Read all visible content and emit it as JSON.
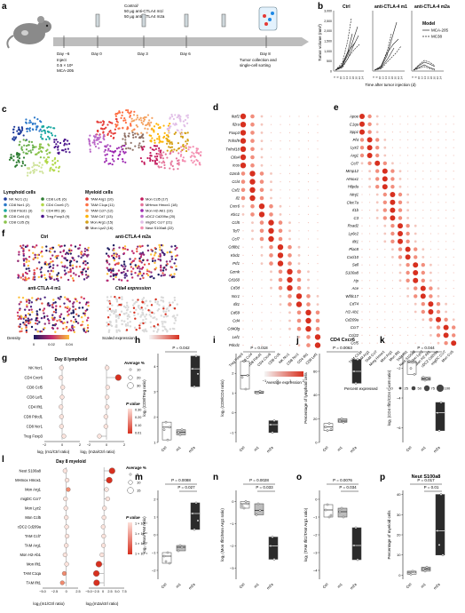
{
  "panels": {
    "a": {
      "letter": "a",
      "treatment_line1": "Control/",
      "treatment_line2": "50 µg anti-CTLA4 m1/",
      "treatment_line3": "50 µg anti-CTLA4 m2a",
      "days": [
        "Day −6",
        "Day 0",
        "Day 3",
        "Day 6",
        "Day 8"
      ],
      "inject_line1": "Inject",
      "inject_line2": "0.5 × 10⁶",
      "inject_line3": "MCA-205",
      "collect_line1": "Tumor collection and",
      "collect_line2": "single-cell sorting"
    },
    "b": {
      "letter": "b",
      "groups": [
        "Ctrl",
        "anti-CTLA-4 m1",
        "anti-CTLA-4 m2a"
      ],
      "ylabel": "Tumor volume (mm³)",
      "yticks": [
        "0",
        "500",
        "1,000",
        "1,500",
        "2,000",
        "2,500",
        "3,000"
      ],
      "xticks": [
        "6",
        "8",
        "10",
        "12",
        "14",
        "16",
        "18",
        "20",
        "22",
        "24"
      ],
      "xlabel": "Time after tumor injection (d)",
      "legend_title": "Model",
      "legend_items": [
        "MCA-205",
        "MC38"
      ]
    },
    "c": {
      "letter": "c",
      "lymphoid_title": "Lymphoid cells",
      "myeloid_title": "Myeloid cells",
      "lymphoid_col1": [
        "NK Ncr1 (1)",
        "CD8 Ncr1 (2)",
        "CD8 Pdcd1 (3)",
        "CD8 Ccl4 (4)",
        "CD8 Ccl5 (5)"
      ],
      "lymphoid_col2": [
        "CD8 Lef1 (6)",
        "CD4 Cxcr6 (7)",
        "CD4 Ifit1 (8)",
        "Treg Foxp3 (9)"
      ],
      "myeloid_col1": [
        "TAM Arg1 (10)",
        "TAM C1qa (11)",
        "TAM Ccl7 (12)",
        "TAM Cd7 (13)",
        "Mon Arg1 (15)",
        "Mon Lyz2 (16)"
      ],
      "myeloid_col2": [
        "Mon Ccl5 (17)",
        "MHmox Hmox1 (18)",
        "Mon H2-Ab1 (19)",
        "cDC2 Cd209a (20)",
        "migDC Ccr7 (21)",
        "Neut S100a8 (22)"
      ],
      "lymphoid_colors": [
        "#1f3b9c",
        "#2a78c9",
        "#18a7a0",
        "#6ab04c",
        "#8bc34a",
        "#2e7d32",
        "#b3d94a",
        "#cfe39a",
        "#4a148c"
      ],
      "myeloid_colors": [
        "#e53935",
        "#ff7043",
        "#f4a261",
        "#ffb300",
        "#d4a017",
        "#8d6e63",
        "#c2185b",
        "#e57399",
        "#9c27b0",
        "#ba68c8",
        "#e1bee7",
        "#f48fb1"
      ]
    },
    "d": {
      "letter": "d",
      "genes": [
        "Ikzf2",
        "Il2ra",
        "Foxp3",
        "Tnfrsf9",
        "Tnfrsf18",
        "Ctla4",
        "Icos",
        "Gzmb",
        "Ccl4",
        "Csf2",
        "Il2",
        "Cxcr6",
        "Klrc1",
        "Ccl5",
        "Tcf7",
        "Ccl7",
        "Cd8b1",
        "Klrd1",
        "Prf1",
        "Gzmk",
        "Cd160",
        "Cd3d",
        "Ncr1",
        "Ifit1",
        "Cd69",
        "Cd4",
        "Cd40lg",
        "Lef1",
        "Pdcd1"
      ],
      "clusters": [
        "Treg Foxp3",
        "CD8 Ccl4",
        "CD8 Pdcd1",
        "CD4 Cxcr6",
        "CD8 Ccl5",
        "NK Ncr1",
        "CD8 Ncr1",
        "CD4 Ifit1",
        "CD8 Lef1"
      ],
      "legend_title": "Average expression",
      "legend_ticks": [
        "−1",
        "0",
        "1",
        "2"
      ]
    },
    "e": {
      "letter": "e",
      "genes": [
        "Apoe",
        "C1qa",
        "Spp1",
        "Pf4",
        "Lyz2",
        "Arg1",
        "Ccl7",
        "Mmp12",
        "Hmox1",
        "Hilpda",
        "Ninj1",
        "Clec7a",
        "Il1b",
        "C3",
        "Rsad2",
        "Ly6c2",
        "Ifit1",
        "Plac8",
        "Cxcl10",
        "Sell",
        "S100a8",
        "Hp",
        "Ace",
        "Wfdc17",
        "Cd74",
        "H2-Ab1",
        "Cd209a",
        "Ccr7",
        "Ccl22",
        "Ccl5"
      ],
      "clusters": [
        "TAM C1qa",
        "TAM Arg1",
        "TAM Ccl7",
        "Mreg Hmox1",
        "Mon Arg1",
        "Mon Ifit1",
        "TAM Ifit1",
        "Neut S100a8",
        "Mon Lyz2",
        "Mon H2-Ab1",
        "cDC2 Cd209a",
        "migDC Ccr7",
        "Mon Ccl5"
      ],
      "legend_title": "Percent expressed",
      "legend_ticks": [
        "0",
        "25",
        "50",
        "75",
        "100"
      ]
    },
    "f": {
      "letter": "f",
      "titles": [
        "Ctrl",
        "anti-CTLA-4 m2a",
        "anti-CTLA-4 m1",
        "Ctla4 expression"
      ],
      "density_label": "Density",
      "density_ticks": [
        "0",
        "0.02",
        "0.04"
      ],
      "scaled_label": "Scaled expression"
    },
    "g": {
      "letter": "g",
      "title": "Day 8 lymphoid",
      "rows": [
        "NK Ncr1",
        "CD4 Cxcr6",
        "CD8 Ccl5",
        "CD8 Lef1",
        "CD4 Ifit1",
        "CD8 Pdcd1",
        "CD8 Ncr1",
        "Treg Foxp3"
      ],
      "m1_values": [
        -0.1,
        -0.2,
        0.1,
        0.0,
        -0.2,
        -0.1,
        -0.1,
        0.3
      ],
      "m2a_values": [
        0.1,
        2.0,
        0.2,
        0.1,
        0.1,
        -0.1,
        -0.1,
        -1.2
      ],
      "xlabel_left": "log₂ (m1/Ctrl ratio)",
      "xlabel_right": "log₂ (m2a/Ctrl ratio)",
      "xticks_left": [
        "−2",
        "0",
        "2"
      ],
      "xticks_right": [
        "−2",
        "0",
        "2"
      ],
      "size_title": "Average %",
      "size_ticks": [
        "10",
        "20",
        "30"
      ],
      "p_title": "P value",
      "p_ticks": [
        "0.30",
        "0.20",
        "0.10",
        "0.01"
      ]
    },
    "h": {
      "letter": "h",
      "pval": "P = 0.042",
      "ylabel": "log₂ (CD8/Treg ratio)",
      "yticks": [
        "1",
        "2",
        "3",
        "4"
      ],
      "groups": [
        "Ctrl",
        "m1",
        "m2a"
      ],
      "values": [
        [
          1.5,
          1.8,
          1.1,
          1.6
        ],
        [
          1.4,
          1.3,
          1.5
        ],
        [
          3.9,
          3.2,
          4.4,
          3.7
        ]
      ]
    },
    "i": {
      "letter": "i",
      "pval": "P = 0.018",
      "ylabel": "log₂ (CD8/CD4 ratio)",
      "yticks": [
        "−1",
        "0",
        "1",
        "2"
      ],
      "groups": [
        "Ctrl",
        "m1",
        "m2a"
      ],
      "values": [
        [
          1.8,
          2.6,
          1.2,
          1.9
        ],
        [
          1.0,
          1.0,
          1.1
        ],
        [
          -0.6,
          -1.0,
          -0.4
        ]
      ]
    },
    "j": {
      "letter": "j",
      "title": "CD4 Cxcr6",
      "pval": "P = 0.0063",
      "ylabel": "Percentage of lymphoid cells",
      "yticks": [
        "0",
        "20",
        "40",
        "60"
      ],
      "groups": [
        "Ctrl",
        "m1",
        "m2a"
      ],
      "values": [
        [
          13,
          10,
          16,
          11
        ],
        [
          18,
          20,
          17
        ],
        [
          60,
          50,
          70
        ]
      ]
    },
    "k": {
      "letter": "k",
      "pval": "P = 0.044",
      "ylabel": "log₂ (CD4 Ifit1/CD4 Cxcr6 ratio)",
      "yticks": [
        "−6",
        "−4",
        "−2"
      ],
      "groups": [
        "Ctrl",
        "m1",
        "m2a"
      ],
      "values": [
        [
          -1.5,
          -2.0,
          -1.6,
          -2.4
        ],
        [
          -2.6,
          -2.8,
          -2.7
        ],
        [
          -5.0,
          -6.2,
          -4.3
        ]
      ]
    },
    "l": {
      "letter": "l",
      "title": "Day 8 myeloid",
      "rows": [
        "Neut S100a8",
        "MHmox Hmox1",
        "Mon Arg1",
        "migDC Ccr7",
        "Mon Lyz2",
        "Mon Ccl5",
        "cDC2 Cd209a",
        "TAM Ccl7",
        "TAM Arg1",
        "Mon H2-Ab1",
        "Mon Ifit1",
        "TAM C1qa",
        "TAM Ifit1"
      ],
      "m1_values": [
        -0.3,
        0.2,
        0.5,
        -0.2,
        -0.1,
        0.0,
        0.1,
        0.2,
        0.0,
        -0.3,
        0.1,
        -0.5,
        -1.0
      ],
      "m2a_values": [
        3.2,
        2.1,
        1.0,
        1.5,
        0.2,
        0.0,
        -0.3,
        -0.1,
        -0.2,
        -0.8,
        -2.0,
        -3.0,
        -2.9
      ],
      "xlabel_left": "log₂(m1/Ctrl ratio)",
      "xlabel_right": "log₂(m2a/ctrl ratio)",
      "xticks_left": [
        "−5.0",
        "−2.5",
        "0",
        "2.5"
      ],
      "xticks_right": [
        "−5.0",
        "−2.5",
        "0",
        "2.5",
        "5.0",
        "7.5"
      ],
      "size_title": "Average %",
      "size_ticks": [
        "5",
        "10",
        "15"
      ],
      "p_title": "P value",
      "p_ticks": [
        "1 × 10⁻¹",
        "1 × 10⁻²",
        "1 × 10⁻³",
        "1 × 10⁻⁴"
      ]
    },
    "m": {
      "letter": "m",
      "pval1": "P = 0.0088",
      "pval2": "P = 0.027",
      "ylabel": "log₂ (Mon/TAM ratio)",
      "yticks": [
        "−2",
        "−1",
        "0",
        "1",
        "2"
      ],
      "groups": [
        "Ctrl",
        "m1",
        "m2a"
      ],
      "values": [
        [
          -1.2,
          -1.5,
          -1.0,
          -1.6
        ],
        [
          -0.9,
          -0.6,
          -0.7
        ],
        [
          1.2,
          0.3,
          1.8,
          0.8
        ]
      ]
    },
    "n": {
      "letter": "n",
      "pval1": "P = 0.0028",
      "pval2": "P = 0.033",
      "ylabel": "log₂ (Mon Ifit1/Mon Arg1 ratio)",
      "yticks": [
        "−3",
        "−2",
        "−1",
        "0"
      ],
      "groups": [
        "Ctrl",
        "m1",
        "m2a"
      ],
      "values": [
        [
          -0.2,
          -0.3,
          0.0,
          -0.1
        ],
        [
          -0.6,
          -0.1,
          -0.4
        ],
        [
          -2.0,
          -1.6,
          -2.6
        ]
      ]
    },
    "o": {
      "letter": "o",
      "pval1": "P = 0.0076",
      "pval2": "P = 0.034",
      "ylabel": "log₂ (TAM Ifit1/TAM Arg1 ratio)",
      "yticks": [
        "−4",
        "−3",
        "−2",
        "−1",
        "0"
      ],
      "groups": [
        "Ctrl",
        "m1",
        "m2a"
      ],
      "values": [
        [
          -0.6,
          -0.3,
          -1.0,
          -0.9
        ],
        [
          -0.7,
          -0.5,
          -1.0
        ],
        [
          -2.6,
          -1.6,
          -3.4
        ]
      ]
    },
    "p": {
      "letter": "p",
      "title": "Neut S100a8",
      "pval1": "P = 0.017",
      "pval2": "P = 0.01",
      "ylabel": "Percentage of myeloid cells",
      "yticks": [
        "0",
        "10",
        "20",
        "30",
        "40"
      ],
      "groups": [
        "Ctrl",
        "m1",
        "m2a"
      ],
      "values": [
        [
          1.0,
          0.5,
          2.0,
          1.5
        ],
        [
          3.0,
          2.0,
          4.0
        ],
        [
          22,
          15,
          40,
          10
        ]
      ]
    }
  }
}
